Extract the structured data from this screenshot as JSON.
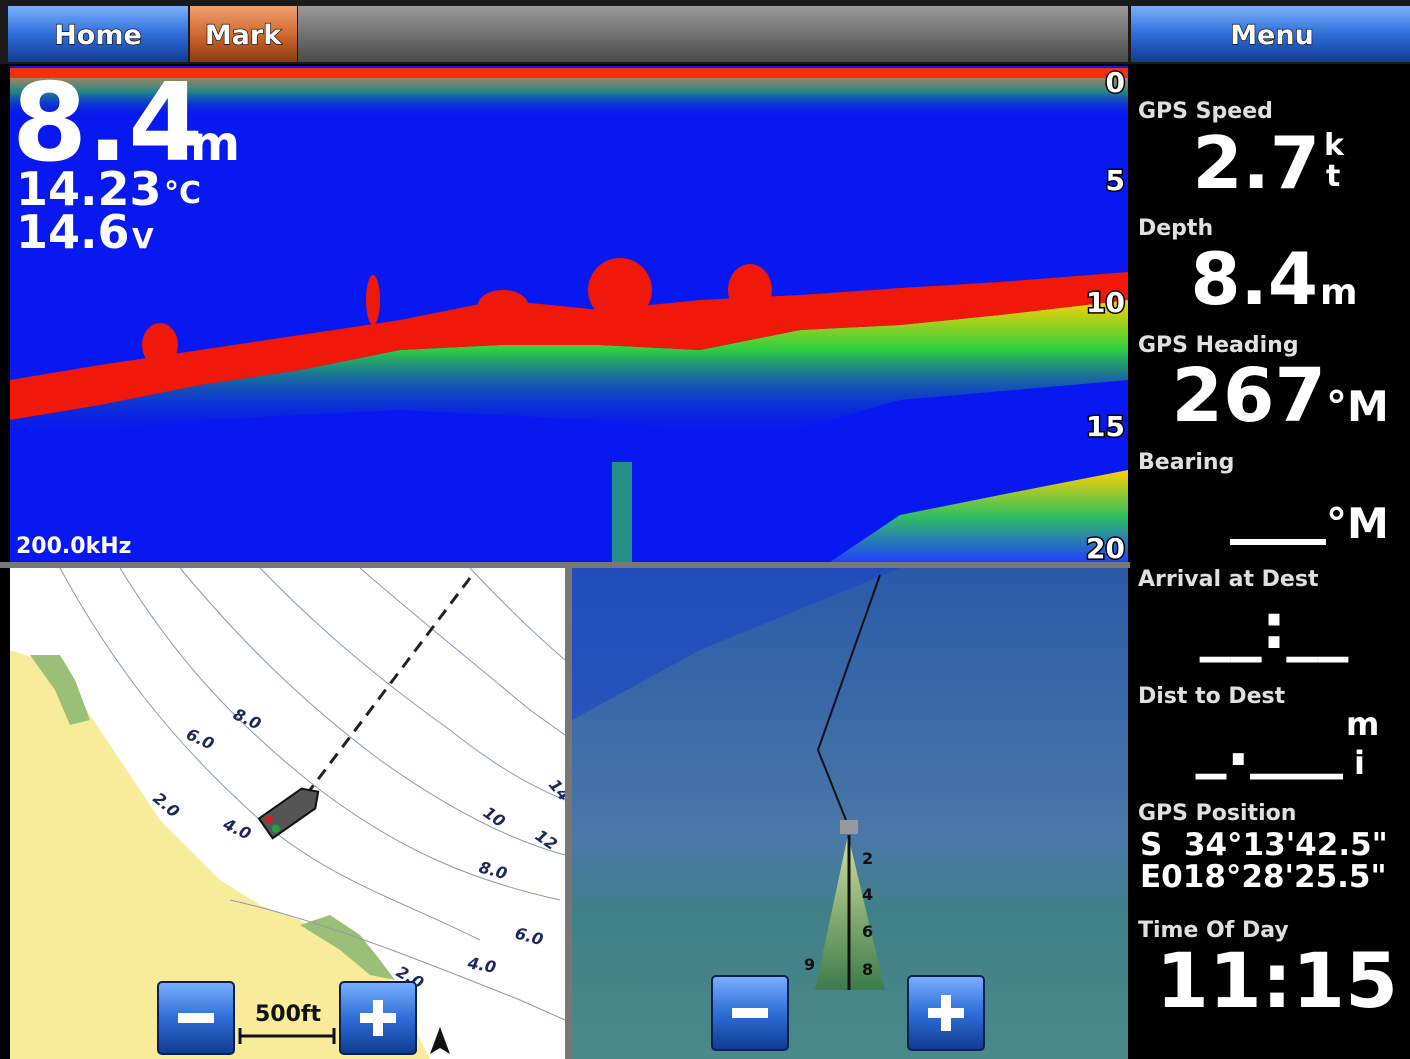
{
  "toolbar": {
    "home": "Home",
    "mark": "Mark",
    "menu": "Menu"
  },
  "sonar": {
    "depth": "8.4",
    "depth_unit": "m",
    "water_temp": "14.23",
    "temp_unit": "°C",
    "voltage": "14.6",
    "voltage_unit": "V",
    "frequency": "200.0kHz",
    "depth_scale": [
      "0",
      "5",
      "10",
      "15",
      "20"
    ]
  },
  "map": {
    "contour_labels": [
      "8.0",
      "6.0",
      "2.0",
      "4.0",
      "10",
      "12",
      "14",
      "8.0",
      "6.0",
      "4.0",
      "2.0"
    ],
    "scale": "500ft"
  },
  "view_3d": {
    "depth_labels": [
      "2",
      "4",
      "6",
      "8"
    ],
    "range_label": "9"
  },
  "data_fields": [
    {
      "label": "GPS Speed",
      "value": "2.7",
      "unit_top": "k",
      "unit_bottom": "t"
    },
    {
      "label": "Depth",
      "value": "8.4",
      "unit": "m"
    },
    {
      "label": "GPS Heading",
      "value": "267",
      "unit": "°M"
    },
    {
      "label": "Bearing",
      "value": "___",
      "unit": "°M"
    },
    {
      "label": "Arrival at Dest",
      "value": "__:__"
    },
    {
      "label": "Dist to Dest",
      "value": "_.___",
      "unit_top": "m",
      "unit_bottom": "i"
    },
    {
      "label": "GPS Position",
      "lines": [
        "S  34°13'42.5\"",
        "E018°28'25.5\""
      ]
    },
    {
      "label": "Time Of Day",
      "value": "11:15"
    }
  ]
}
